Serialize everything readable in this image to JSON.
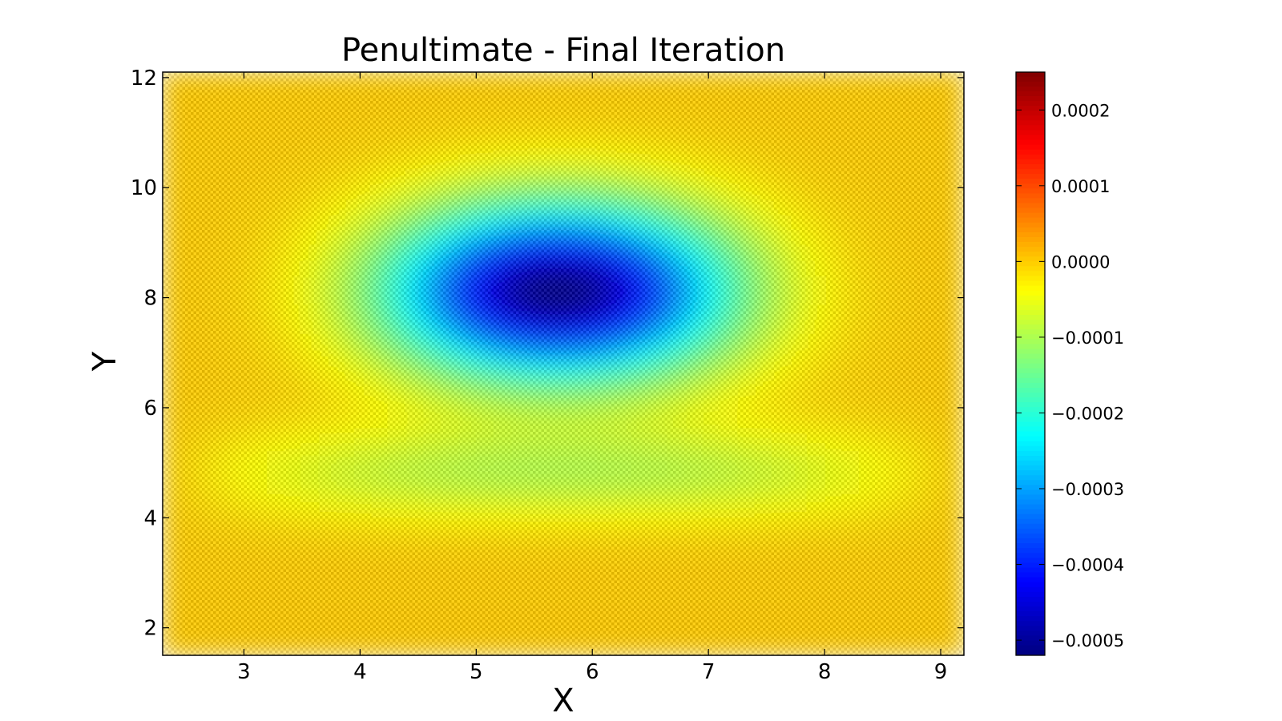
{
  "chart_data": {
    "type": "heatmap",
    "title": "Penultimate - Final Iteration",
    "xlabel": "X",
    "ylabel": "Y",
    "xlim": [
      2.3,
      9.2
    ],
    "ylim": [
      1.5,
      12.1
    ],
    "xticks": [
      3,
      4,
      5,
      6,
      7,
      8,
      9
    ],
    "yticks": [
      2,
      4,
      6,
      8,
      10,
      12
    ],
    "colorbar": {
      "colormap": "jet",
      "range": [
        -0.00052,
        0.00025
      ],
      "ticks": [
        0.0002,
        0.0001,
        0.0,
        -0.0001,
        -0.0002,
        -0.0003,
        -0.0004,
        -0.0005
      ],
      "tick_labels": [
        "0.0002",
        "0.0001",
        "0.0000",
        "−0.0001",
        "−0.0002",
        "−0.0003",
        "−0.0004",
        "−0.0005"
      ]
    },
    "features": [
      {
        "kind": "minimum",
        "x": 5.7,
        "y": 8.1,
        "value": -0.00052
      },
      {
        "kind": "trough",
        "x": 6.0,
        "y": 4.8,
        "value": -9e-05
      },
      {
        "kind": "checkerboard-oscillation",
        "amplitude": 0.00018
      }
    ],
    "grid": false,
    "pattern": "checkerboard oscillation superposed on smooth field"
  },
  "colors": {
    "jet": [
      "#00007f",
      "#0000ff",
      "#007fff",
      "#00ffff",
      "#7fff7f",
      "#ffff00",
      "#ff7f00",
      "#ff0000",
      "#7f0000"
    ]
  }
}
